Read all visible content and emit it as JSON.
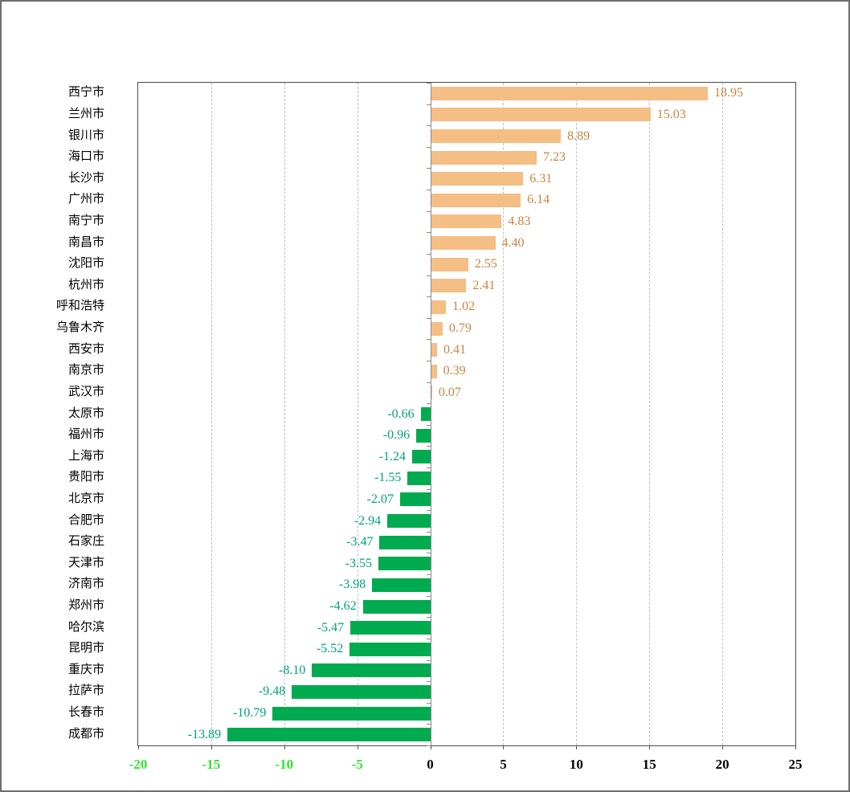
{
  "chart_data": {
    "type": "bar",
    "orientation": "horizontal",
    "title": "",
    "xlabel": "",
    "ylabel": "",
    "xlim": [
      -20,
      25
    ],
    "xticks": [
      -20,
      -15,
      -10,
      -5,
      0,
      5,
      10,
      15,
      20,
      25
    ],
    "grid": "vertical-dashed",
    "legend": "none",
    "categories": [
      "西宁市",
      "兰州市",
      "银川市",
      "海口市",
      "长沙市",
      "广州市",
      "南宁市",
      "南昌市",
      "沈阳市",
      "杭州市",
      "呼和浩特",
      "乌鲁木齐",
      "西安市",
      "南京市",
      "武汉市",
      "太原市",
      "福州市",
      "上海市",
      "贵阳市",
      "北京市",
      "合肥市",
      "石家庄",
      "天津市",
      "济南市",
      "郑州市",
      "哈尔滨",
      "昆明市",
      "重庆市",
      "拉萨市",
      "长春市",
      "成都市"
    ],
    "values": [
      18.95,
      15.03,
      8.89,
      7.23,
      6.31,
      6.14,
      4.83,
      4.4,
      2.55,
      2.41,
      1.02,
      0.79,
      0.41,
      0.39,
      0.07,
      -0.66,
      -0.96,
      -1.24,
      -1.55,
      -2.07,
      -2.94,
      -3.47,
      -3.55,
      -3.98,
      -4.62,
      -5.47,
      -5.52,
      -8.1,
      -9.48,
      -10.79,
      -13.89
    ],
    "value_labels": [
      "18.95",
      "15.03",
      "8.89",
      "7.23",
      "6.31",
      "6.14",
      "4.83",
      "4.40",
      "2.55",
      "2.41",
      "1.02",
      "0.79",
      "0.41",
      "0.39",
      "0.07",
      "-0.66",
      "-0.96",
      "-1.24",
      "-1.55",
      "-2.07",
      "-2.94",
      "-3.47",
      "-3.55",
      "-3.98",
      "-4.62",
      "-5.47",
      "-5.52",
      "-8.10",
      "-9.48",
      "-10.79",
      "-13.89"
    ],
    "colors": {
      "positive_bar": "#F4BE85",
      "negative_bar": "#00AB4F",
      "positive_value_label": "#C98440",
      "negative_value_label": "#00A37A",
      "negative_xtick_label": "#32E632",
      "positive_xtick_label": "#000000",
      "gridline": "#BFBFBF",
      "axis_line": "#8A8A8A",
      "plot_border": "#4A4A4A"
    }
  }
}
